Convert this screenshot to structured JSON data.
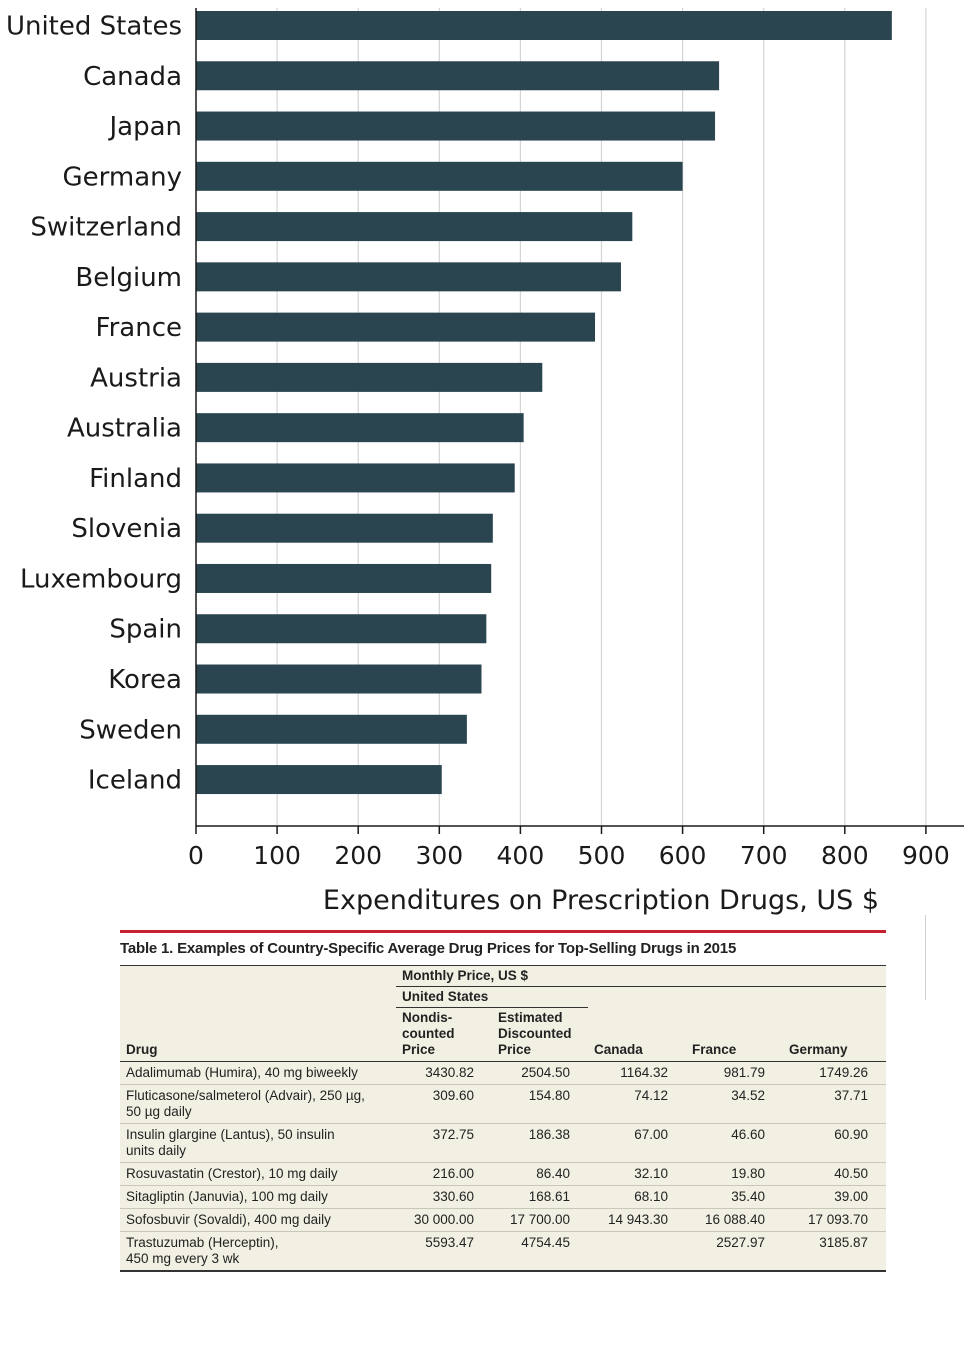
{
  "chart_data": {
    "type": "bar",
    "orientation": "horizontal",
    "categories": [
      "United States",
      "Canada",
      "Japan",
      "Germany",
      "Switzerland",
      "Belgium",
      "France",
      "Austria",
      "Australia",
      "Finland",
      "Slovenia",
      "Luxembourg",
      "Spain",
      "Korea",
      "Sweden",
      "Iceland"
    ],
    "values": [
      858,
      645,
      640,
      600,
      538,
      524,
      492,
      427,
      404,
      393,
      366,
      364,
      358,
      352,
      334,
      303
    ],
    "xticks": [
      "0",
      "100",
      "200",
      "300",
      "400",
      "500",
      "600",
      "700",
      "800",
      "900"
    ],
    "xlim": [
      0,
      900
    ],
    "xlabel": "Expenditures on Prescription Drugs, US $",
    "title": "",
    "grid": true,
    "bar_color": "#2a4450",
    "grid_color": "#d4d4d4"
  },
  "table": {
    "title": "Table 1. Examples of Country-Specific Average Drug Prices for Top-Selling Drugs in 2015",
    "rule_color": "#c8202f",
    "header": {
      "monthly_price": "Monthly Price, US $",
      "united_states": "United States",
      "drug": "Drug",
      "nondiscounted": "Nondis-counted Price",
      "nondiscounted_lines": [
        "Nondis-",
        "counted",
        "Price"
      ],
      "discounted_lines": [
        "Estimated",
        "Discounted",
        "Price"
      ],
      "canada": "Canada",
      "france": "France",
      "germany": "Germany"
    },
    "rows": [
      {
        "drug_lines": [
          "Adalimumab (Humira), 40 mg biweekly"
        ],
        "us_nondiscounted": "3430.82",
        "us_discounted": "2504.50",
        "canada": "1164.32",
        "france": "981.79",
        "germany": "1749.26"
      },
      {
        "drug_lines": [
          "Fluticasone/salmeterol (Advair), 250 µg,",
          "50 µg daily"
        ],
        "us_nondiscounted": "309.60",
        "us_discounted": "154.80",
        "canada": "74.12",
        "france": "34.52",
        "germany": "37.71"
      },
      {
        "drug_lines": [
          "Insulin glargine (Lantus), 50 insulin",
          "units daily"
        ],
        "us_nondiscounted": "372.75",
        "us_discounted": "186.38",
        "canada": "67.00",
        "france": "46.60",
        "germany": "60.90"
      },
      {
        "drug_lines": [
          "Rosuvastatin (Crestor), 10 mg daily"
        ],
        "us_nondiscounted": "216.00",
        "us_discounted": "86.40",
        "canada": "32.10",
        "france": "19.80",
        "germany": "40.50"
      },
      {
        "drug_lines": [
          "Sitagliptin (Januvia), 100 mg daily"
        ],
        "us_nondiscounted": "330.60",
        "us_discounted": "168.61",
        "canada": "68.10",
        "france": "35.40",
        "germany": "39.00"
      },
      {
        "drug_lines": [
          "Sofosbuvir (Sovaldi), 400 mg daily"
        ],
        "us_nondiscounted": "30 000.00",
        "us_discounted": "17 700.00",
        "canada": "14 943.30",
        "france": "16 088.40",
        "germany": "17 093.70"
      },
      {
        "drug_lines": [
          "Trastuzumab (Herceptin),",
          "450 mg every 3 wk"
        ],
        "us_nondiscounted": "5593.47",
        "us_discounted": "4754.45",
        "canada": "",
        "france": "2527.97",
        "germany": "3185.87"
      }
    ]
  }
}
